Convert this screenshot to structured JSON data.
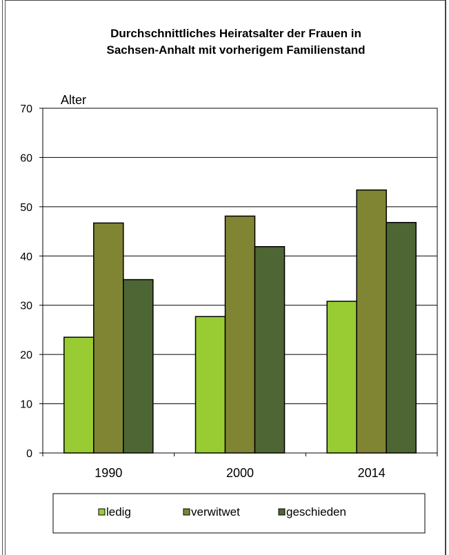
{
  "chart_data": {
    "type": "bar",
    "title_lines": [
      "Durchschnittliches Heiratsalter der Frauen in",
      "Sachsen-Anhalt mit vorherigem  Familienstand"
    ],
    "ylabel": "Alter",
    "xlabel": "",
    "categories": [
      "1990",
      "2000",
      "2014"
    ],
    "ylim": [
      0,
      70
    ],
    "yticks": [
      0,
      10,
      20,
      30,
      40,
      50,
      60,
      70
    ],
    "grid": true,
    "legend_position": "bottom",
    "series": [
      {
        "name": "ledig",
        "color": "#99cc33",
        "values": [
          23.5,
          27.7,
          30.8
        ]
      },
      {
        "name": "verwitwet",
        "color": "#808533",
        "values": [
          46.7,
          48.1,
          53.4
        ]
      },
      {
        "name": "geschieden",
        "color": "#4d6633",
        "values": [
          35.2,
          41.9,
          46.8
        ]
      }
    ]
  }
}
